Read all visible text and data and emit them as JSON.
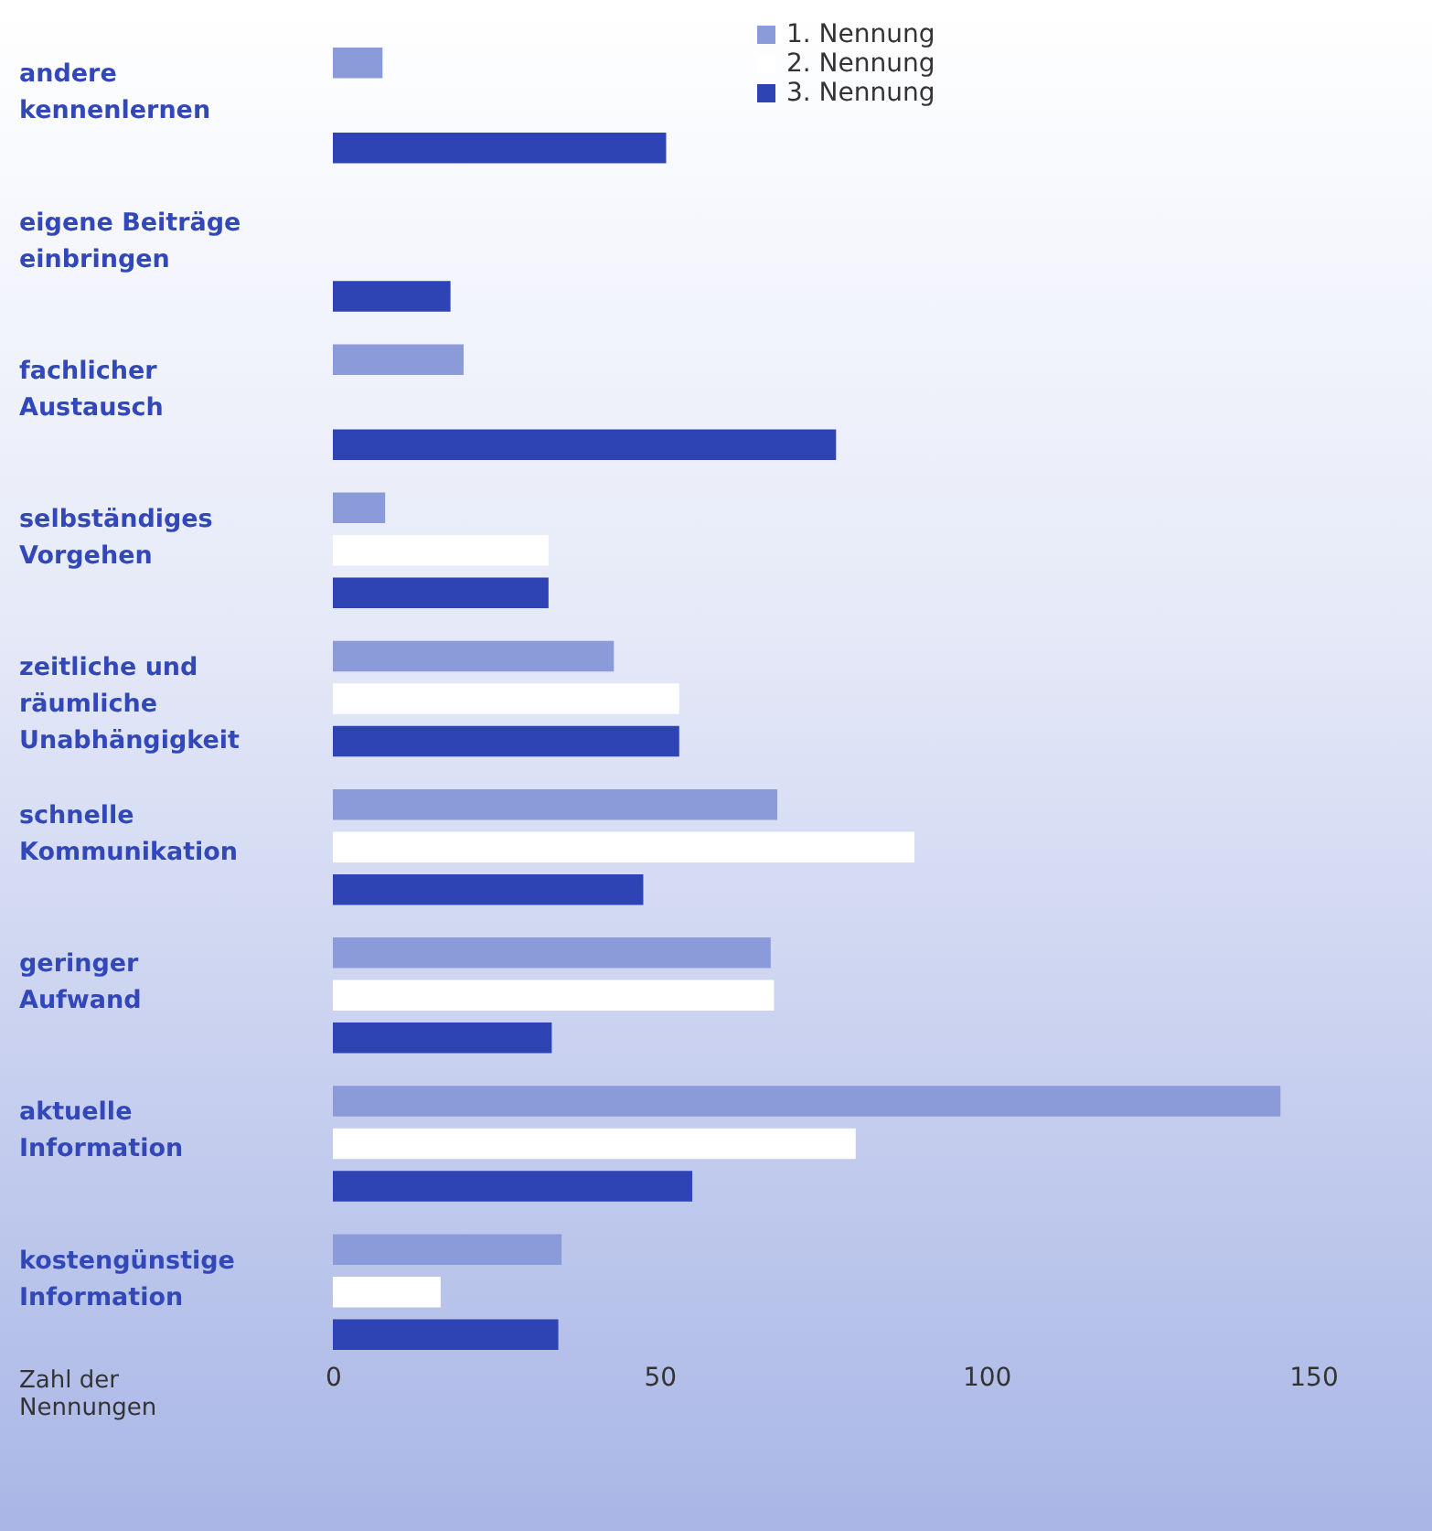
{
  "chart_data": {
    "type": "bar",
    "orientation": "horizontal",
    "xlabel": "Zahl der\nNennungen",
    "categories": [
      "andere\nkennenlernen",
      "eigene Beiträge\neinbringen",
      "fachlicher\nAustausch",
      "selbständiges\nVorgehen",
      "zeitliche und\nräumliche\nUnabhängigkeit",
      "schnelle\nKommunikation",
      "geringer\nAufwand",
      "aktuelle\nInformation",
      "kostengünstige\nInformation"
    ],
    "series": [
      {
        "name": "1. Nennung",
        "color": "#8b9ad8",
        "values": [
          7.6,
          null,
          20,
          8,
          43,
          68,
          67,
          145,
          35
        ]
      },
      {
        "name": "2. Nennung",
        "color": "#ffffff",
        "values": [
          null,
          null,
          null,
          33,
          53,
          89,
          67.5,
          80,
          16.5
        ]
      },
      {
        "name": "3. Nennung",
        "color": "#2f44b4",
        "values": [
          51,
          18,
          77,
          33,
          53,
          47.5,
          33.5,
          55,
          34.5
        ]
      }
    ],
    "xlim": [
      0,
      150
    ],
    "xticks": [
      0,
      50,
      100,
      150
    ],
    "grid": false,
    "legend": "top right"
  }
}
